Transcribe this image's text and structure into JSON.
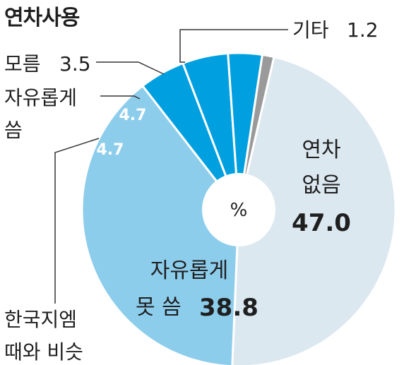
{
  "title": "연차사용",
  "unit_label": "%",
  "colors": {
    "no_leave": "#dce8f0",
    "not_free": "#8dcdec",
    "similar": "#00a0e0",
    "free": "#00a0e0",
    "unknown": "#00a0e0",
    "other": "#9a9a9a",
    "stroke": "#ffffff",
    "leader": "#333333"
  },
  "chart_data": {
    "type": "pie",
    "unit": "%",
    "slices": [
      {
        "key": "no_leave",
        "label_lines": [
          "연차",
          "없음"
        ],
        "value": 47.0,
        "value_text": "47.0"
      },
      {
        "key": "not_free",
        "label_lines": [
          "자유롭게",
          "못 씀"
        ],
        "value": 38.8,
        "value_text": "38.8"
      },
      {
        "key": "similar",
        "label_lines": [
          "한국지엠",
          "때와 비슷"
        ],
        "value": 4.7,
        "value_text": "4.7"
      },
      {
        "key": "free",
        "label_lines": [
          "자유롭게",
          "씀"
        ],
        "value": 4.7,
        "value_text": "4.7"
      },
      {
        "key": "unknown",
        "label_lines": [
          "모름"
        ],
        "value": 3.5,
        "value_text": "3.5"
      },
      {
        "key": "other",
        "label_lines": [
          "기타"
        ],
        "value": 1.2,
        "value_text": "1.2"
      }
    ]
  }
}
